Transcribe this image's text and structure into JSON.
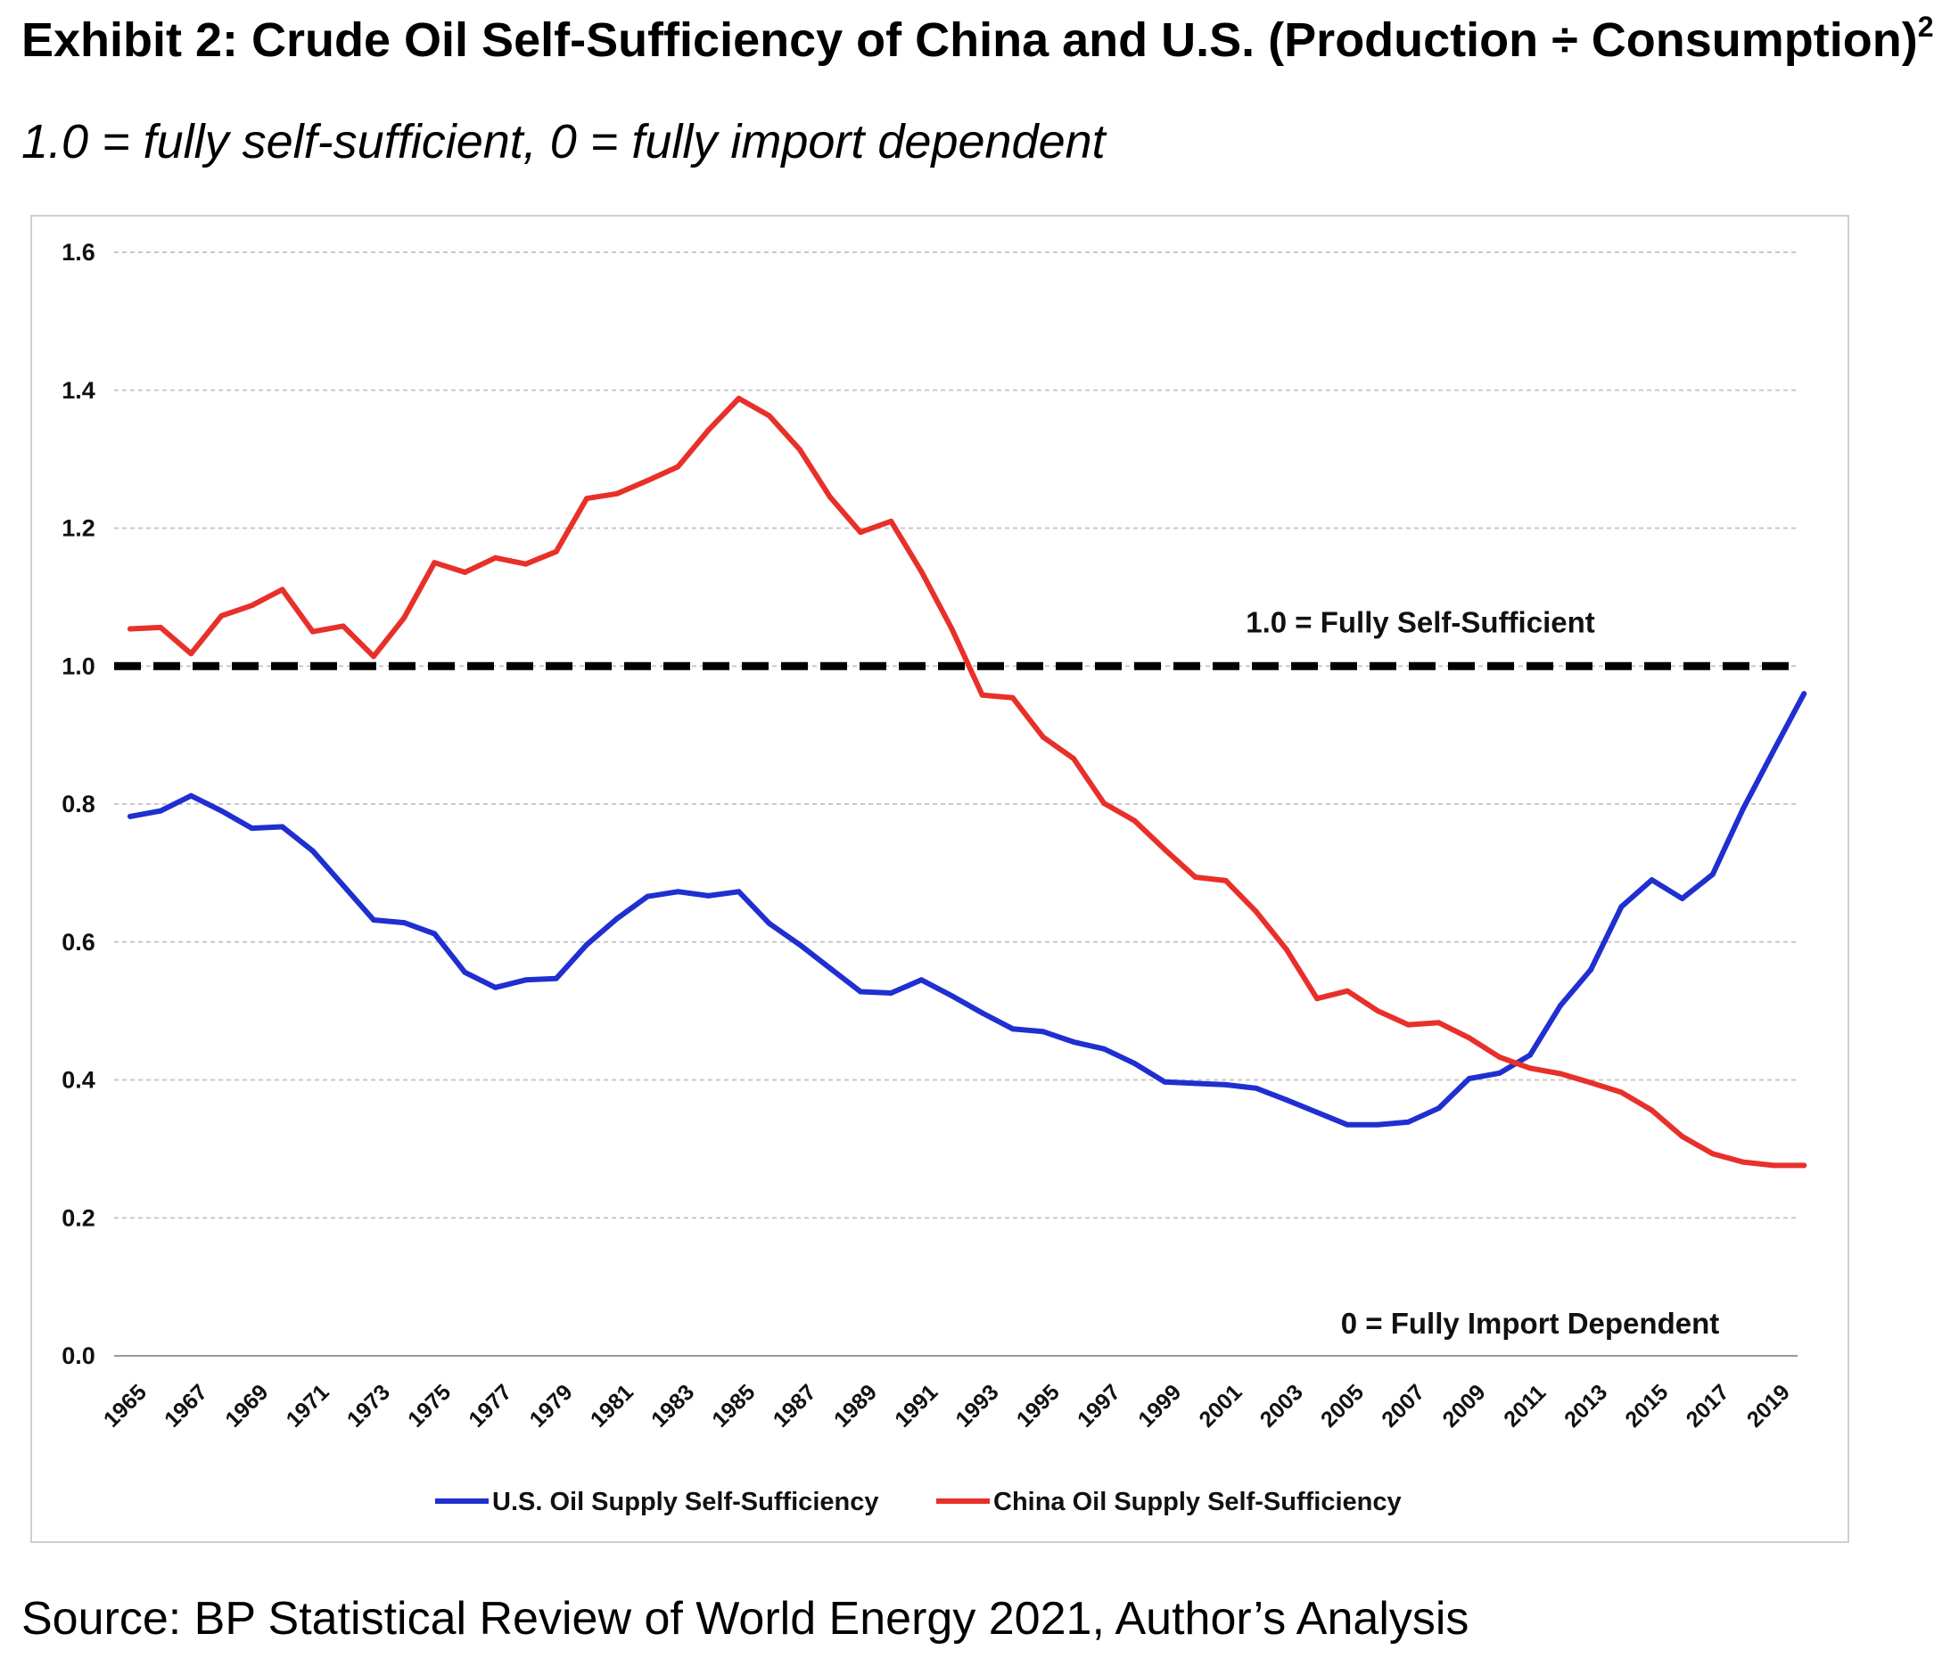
{
  "title": "Exhibit 2: Crude Oil Self-Sufficiency of China and U.S. (Production ÷ Consumption)",
  "title_superscript": "2",
  "subtitle": "1.0 = fully self-sufficient, 0 = fully import dependent",
  "source": "Source: BP Statistical Review of World Energy 2021, Author’s Analysis",
  "chart_data": {
    "type": "line",
    "ylim": [
      0,
      1.6
    ],
    "y_ticks": [
      "0.0",
      "0.2",
      "0.4",
      "0.6",
      "0.8",
      "1.0",
      "1.2",
      "1.4",
      "1.6"
    ],
    "x_tick_labels": [
      "1965",
      "1967",
      "1969",
      "1971",
      "1973",
      "1975",
      "1977",
      "1979",
      "1981",
      "1983",
      "1985",
      "1987",
      "1989",
      "1991",
      "1993",
      "1995",
      "1997",
      "1999",
      "2001",
      "2003",
      "2005",
      "2007",
      "2009",
      "2011",
      "2013",
      "2015",
      "2017",
      "2019"
    ],
    "grid": "horizontal dashed",
    "legend_position": "bottom",
    "x": [
      1965,
      1966,
      1967,
      1968,
      1969,
      1970,
      1971,
      1972,
      1973,
      1974,
      1975,
      1976,
      1977,
      1978,
      1979,
      1980,
      1981,
      1982,
      1983,
      1984,
      1985,
      1986,
      1987,
      1988,
      1989,
      1990,
      1991,
      1992,
      1993,
      1994,
      1995,
      1996,
      1997,
      1998,
      1999,
      2000,
      2001,
      2002,
      2003,
      2004,
      2005,
      2006,
      2007,
      2008,
      2009,
      2010,
      2011,
      2012,
      2013,
      2014,
      2015,
      2016,
      2017,
      2018,
      2019,
      2020
    ],
    "series": [
      {
        "name": "U.S. Oil Supply Self-Sufficiency",
        "color": "#1f2fd0",
        "values": [
          0.782,
          0.79,
          0.812,
          0.79,
          0.765,
          0.767,
          0.732,
          0.682,
          0.632,
          0.628,
          0.612,
          0.556,
          0.534,
          0.545,
          0.547,
          0.596,
          0.634,
          0.666,
          0.673,
          0.667,
          0.673,
          0.627,
          0.596,
          0.562,
          0.528,
          0.526,
          0.545,
          0.522,
          0.497,
          0.474,
          0.47,
          0.455,
          0.445,
          0.424,
          0.397,
          0.395,
          0.393,
          0.388,
          0.371,
          0.353,
          0.335,
          0.335,
          0.339,
          0.359,
          0.402,
          0.41,
          0.436,
          0.508,
          0.56,
          0.651,
          0.69,
          0.663,
          0.698,
          0.793,
          0.877,
          0.96
        ]
      },
      {
        "name": "China Oil Supply Self-Sufficiency",
        "color": "#e8302a",
        "values": [
          1.054,
          1.056,
          1.018,
          1.073,
          1.088,
          1.111,
          1.05,
          1.058,
          1.014,
          1.07,
          1.15,
          1.136,
          1.157,
          1.148,
          1.166,
          1.243,
          1.25,
          1.269,
          1.289,
          1.342,
          1.388,
          1.363,
          1.314,
          1.245,
          1.194,
          1.21,
          1.137,
          1.054,
          0.958,
          0.954,
          0.897,
          0.866,
          0.801,
          0.776,
          0.734,
          0.694,
          0.689,
          0.644,
          0.589,
          0.518,
          0.529,
          0.5,
          0.48,
          0.483,
          0.461,
          0.433,
          0.417,
          0.409,
          0.396,
          0.382,
          0.356,
          0.318,
          0.293,
          0.281,
          0.276,
          0.276
        ]
      }
    ],
    "reference_line": {
      "y": 1.0,
      "label": "1.0 = Fully Self-Sufficient"
    },
    "annotation_bottom": "0 = Fully Import Dependent"
  }
}
